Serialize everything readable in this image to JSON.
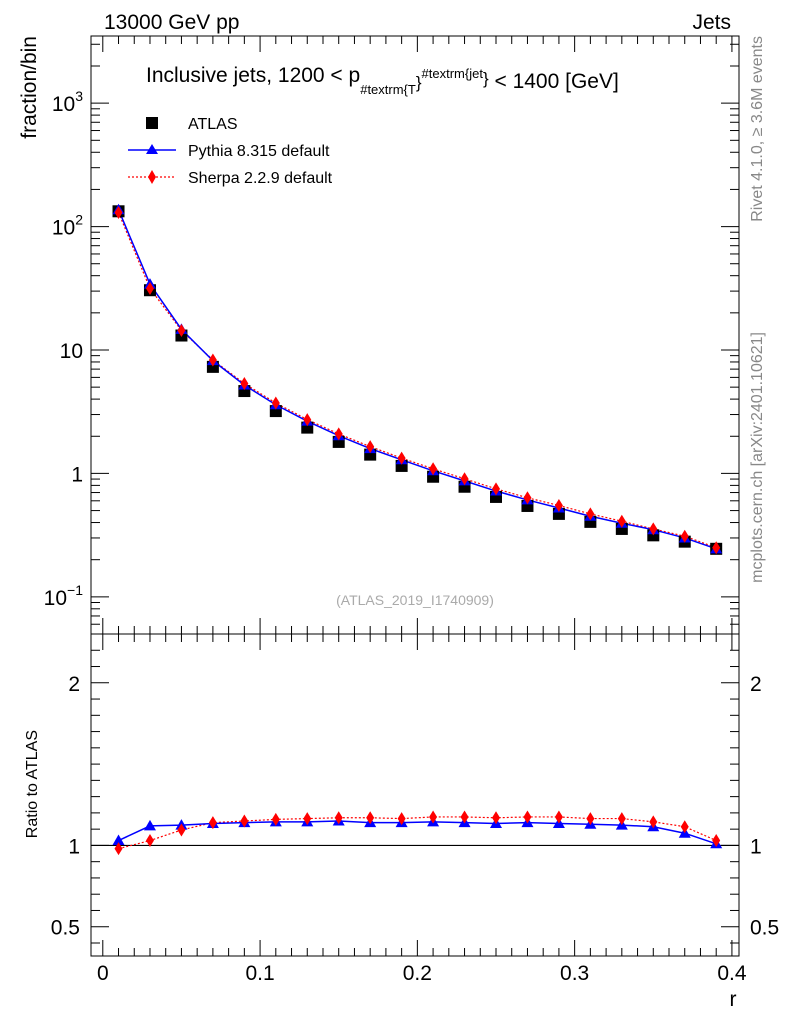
{
  "header": {
    "energy": "13000 GeV pp",
    "process": "Jets"
  },
  "side_labels": {
    "rivet": "Rivet 4.1.0, ≥ 3.6M events",
    "mcplots": "mcplots.cern.ch [arXiv:2401.10621]"
  },
  "watermark": "(ATLAS_2019_I1740909)",
  "colors": {
    "data": "#000000",
    "pythia": "#0000ff",
    "sherpa": "#ff0000"
  },
  "chart_data": [
    {
      "type": "scatter",
      "title": "Inclusive jets, 1200 < p_{#textrm{T}}^{#textrm{jet}} < 1400 [GeV]",
      "title_parts": {
        "pre": "Inclusive jets, 1200 < p",
        "sub": "#textrm{T",
        "sub_close": "}",
        "sup": "#textrm{jet",
        "sup_close": "}",
        "post": " < 1400 [GeV]"
      },
      "ylabel": "fraction/bin",
      "yscale": "log",
      "ylim": [
        0.05,
        3500
      ],
      "xlim": [
        -0.0075,
        0.4045
      ],
      "yticks": [
        {
          "value": 1000,
          "base": "10",
          "exp": "3"
        },
        {
          "value": 100,
          "base": "10",
          "exp": "2"
        },
        {
          "value": 10,
          "base": "10",
          "exp": ""
        },
        {
          "value": 1,
          "base": "1",
          "exp": ""
        },
        {
          "value": 0.1,
          "base": "10",
          "exp": "−1"
        }
      ],
      "legend": [
        "ATLAS",
        "Pythia 8.315 default",
        "Sherpa 2.2.9 default"
      ],
      "x": [
        0.01,
        0.03,
        0.05,
        0.07,
        0.09,
        0.11,
        0.13,
        0.15,
        0.17,
        0.19,
        0.21,
        0.23,
        0.25,
        0.27,
        0.29,
        0.31,
        0.33,
        0.35,
        0.37,
        0.39
      ],
      "series": [
        {
          "name": "ATLAS",
          "values": [
            133,
            30.5,
            13.1,
            7.3,
            4.65,
            3.2,
            2.35,
            1.8,
            1.42,
            1.15,
            0.94,
            0.78,
            0.645,
            0.545,
            0.47,
            0.405,
            0.355,
            0.315,
            0.28,
            0.245
          ]
        },
        {
          "name": "Pythia 8.315 default",
          "values": [
            137,
            34.2,
            14.7,
            8.2,
            5.2,
            3.6,
            2.65,
            2.02,
            1.59,
            1.29,
            1.05,
            0.87,
            0.72,
            0.61,
            0.525,
            0.45,
            0.395,
            0.35,
            0.3,
            0.245
          ]
        },
        {
          "name": "Sherpa 2.2.9 default",
          "values": [
            130,
            31.5,
            14.4,
            8.3,
            5.35,
            3.72,
            2.73,
            2.09,
            1.65,
            1.33,
            1.09,
            0.905,
            0.75,
            0.635,
            0.55,
            0.47,
            0.41,
            0.355,
            0.31,
            0.25
          ]
        }
      ]
    },
    {
      "type": "line",
      "ylabel": "Ratio to ATLAS",
      "xlabel": "r",
      "ylim": [
        0.32,
        2.3
      ],
      "xlim": [
        -0.0075,
        0.4045
      ],
      "yticks": [
        0.5,
        1,
        2
      ],
      "ytick_labels": [
        "0.5",
        "1",
        "2"
      ],
      "xticks": [
        0,
        0.1,
        0.2,
        0.3,
        0.4
      ],
      "xtick_labels": [
        "0",
        "0.1",
        "0.2",
        "0.3",
        "0.4"
      ],
      "x": [
        0.01,
        0.03,
        0.05,
        0.07,
        0.09,
        0.11,
        0.13,
        0.15,
        0.17,
        0.19,
        0.21,
        0.23,
        0.25,
        0.27,
        0.29,
        0.31,
        0.33,
        0.35,
        0.37,
        0.39
      ],
      "series": [
        {
          "name": "Pythia 8.315 default",
          "values": [
            1.03,
            1.12,
            1.125,
            1.135,
            1.14,
            1.145,
            1.145,
            1.15,
            1.14,
            1.14,
            1.145,
            1.14,
            1.135,
            1.14,
            1.135,
            1.13,
            1.125,
            1.115,
            1.075,
            1.01
          ]
        },
        {
          "name": "Sherpa 2.2.9 default",
          "values": [
            0.98,
            1.03,
            1.095,
            1.14,
            1.15,
            1.16,
            1.165,
            1.17,
            1.17,
            1.165,
            1.175,
            1.175,
            1.17,
            1.175,
            1.175,
            1.165,
            1.165,
            1.145,
            1.115,
            1.03
          ]
        }
      ]
    }
  ]
}
